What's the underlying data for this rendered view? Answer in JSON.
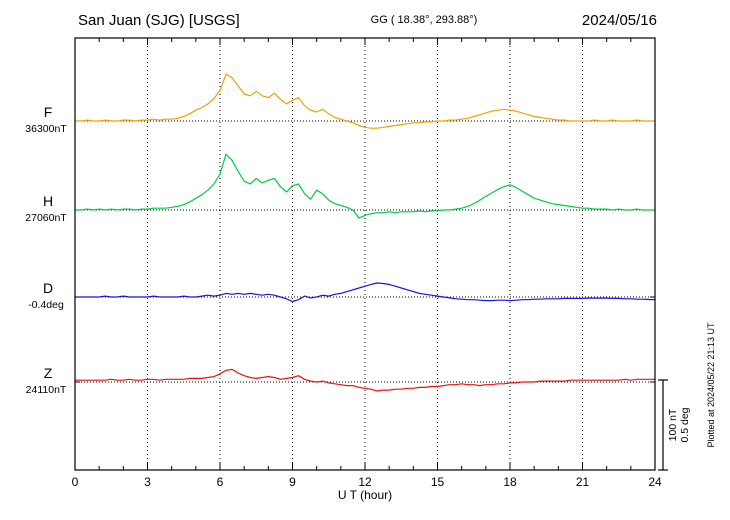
{
  "header": {
    "title": "San Juan (SJG)  [USGS]",
    "coords": "GG ( 18.38°, 293.88°)",
    "date": "2024/05/16"
  },
  "footer": {
    "xlabel": "U T (hour)",
    "plotted_at": "Plotted at 2024/05/22 21:13 UT"
  },
  "scale_bar": {
    "nt_label": "100 nT",
    "deg_label": "0.5 deg"
  },
  "chart_data": {
    "type": "line",
    "title": "San Juan (SJG) [USGS] magnetogram 2024/05/16",
    "xlabel": "U T (hour)",
    "x_range": [
      0,
      24
    ],
    "x_ticks": [
      0,
      3,
      6,
      9,
      12,
      15,
      18,
      21,
      24
    ],
    "sample_step_hours": 0.25,
    "grid": "dotted vertical lines every 3 hours; dotted horizontal baseline per series",
    "scale": {
      "nT_per_bar": 100,
      "deg_per_bar": 0.5
    },
    "series": [
      {
        "name": "F",
        "baseline_label": "36300nT",
        "baseline_value": 36300,
        "unit": "nT",
        "color": "#f0a200",
        "values": [
          0,
          0,
          1,
          0,
          0,
          1,
          0,
          0,
          1,
          1,
          0,
          1,
          1,
          2,
          1,
          2,
          2,
          3,
          5,
          8,
          12,
          15,
          19,
          25,
          34,
          52,
          48,
          39,
          30,
          28,
          33,
          28,
          26,
          31,
          24,
          19,
          23,
          26,
          17,
          12,
          10,
          13,
          8,
          4,
          2,
          0,
          -2,
          -5,
          -7,
          -8,
          -8,
          -7,
          -6,
          -5,
          -4,
          -3,
          -2,
          -2,
          -1,
          -1,
          0,
          0,
          1,
          1,
          2,
          3,
          5,
          7,
          9,
          11,
          12,
          13,
          12,
          11,
          9,
          7,
          5,
          4,
          3,
          2,
          1,
          1,
          0,
          0,
          0,
          0,
          1,
          0,
          0,
          1,
          0,
          0,
          0,
          1,
          0,
          0,
          0
        ]
      },
      {
        "name": "H",
        "baseline_label": "27060nT",
        "baseline_value": 27060,
        "unit": "nT",
        "color": "#00cc44",
        "values": [
          0,
          0,
          1,
          0,
          1,
          0,
          1,
          0,
          1,
          1,
          0,
          1,
          1,
          2,
          2,
          2,
          3,
          4,
          6,
          9,
          13,
          17,
          22,
          29,
          40,
          62,
          55,
          43,
          32,
          29,
          35,
          30,
          33,
          35,
          26,
          20,
          27,
          29,
          18,
          12,
          22,
          18,
          11,
          7,
          5,
          3,
          0,
          -9,
          -6,
          -4,
          -3,
          -3,
          -2,
          -3,
          -2,
          -2,
          -2,
          -1,
          -2,
          -1,
          -1,
          0,
          0,
          1,
          2,
          4,
          7,
          11,
          15,
          19,
          23,
          26,
          28,
          25,
          21,
          17,
          13,
          11,
          9,
          7,
          6,
          5,
          4,
          3,
          2,
          2,
          1,
          1,
          1,
          0,
          1,
          0,
          0,
          1,
          0,
          0,
          0
        ]
      },
      {
        "name": "D",
        "baseline_label": "-0.4deg",
        "baseline_value": -0.4,
        "unit": "deg",
        "color": "#1515dd",
        "values": [
          0,
          0,
          0,
          0,
          0,
          0.005,
          0,
          0,
          0.005,
          0,
          0,
          0,
          0,
          0.005,
          0,
          0,
          0,
          0,
          0.005,
          0,
          0,
          0.005,
          0.01,
          0.005,
          0.01,
          0.02,
          0.015,
          0.02,
          0.015,
          0.02,
          0.015,
          0.01,
          0.015,
          0.01,
          0,
          -0.01,
          -0.025,
          -0.015,
          0.005,
          -0.005,
          0,
          0.01,
          0.005,
          0.015,
          0.02,
          0.03,
          0.04,
          0.05,
          0.06,
          0.07,
          0.078,
          0.075,
          0.07,
          0.06,
          0.05,
          0.04,
          0.03,
          0.02,
          0.015,
          0.01,
          0.005,
          0,
          -0.005,
          -0.01,
          -0.012,
          -0.015,
          -0.015,
          -0.018,
          -0.02,
          -0.02,
          -0.018,
          -0.018,
          -0.02,
          -0.018,
          -0.015,
          -0.015,
          -0.012,
          -0.012,
          -0.01,
          -0.01,
          -0.01,
          -0.008,
          -0.008,
          -0.008,
          -0.008,
          -0.006,
          -0.006,
          -0.006,
          -0.006,
          -0.008,
          -0.008,
          -0.01,
          -0.01,
          -0.012,
          -0.012,
          -0.014,
          -0.015
        ]
      },
      {
        "name": "Z",
        "baseline_label": "24110nT",
        "baseline_value": 24110,
        "unit": "nT",
        "color": "#ee1111",
        "values": [
          2,
          2,
          2,
          2,
          2,
          2,
          3,
          2,
          2,
          3,
          2,
          2,
          3,
          3,
          2,
          3,
          3,
          3,
          3,
          4,
          4,
          4,
          5,
          6,
          9,
          13,
          14,
          10,
          7,
          5,
          4,
          5,
          6,
          5,
          3,
          4,
          5,
          7,
          3,
          1,
          0,
          1,
          -1,
          -2,
          -3,
          -4,
          -4,
          -6,
          -7,
          -8,
          -10,
          -9,
          -9,
          -8,
          -8,
          -7,
          -7,
          -6,
          -6,
          -5,
          -5,
          -4,
          -3,
          -3,
          -2,
          -3,
          -3,
          -4,
          -3,
          -3,
          -2,
          -2,
          -1,
          -1,
          0,
          0,
          0,
          1,
          1,
          1,
          1,
          1,
          2,
          2,
          2,
          2,
          2,
          2,
          2,
          2,
          2,
          3,
          2,
          3,
          3,
          3,
          3
        ]
      }
    ]
  }
}
